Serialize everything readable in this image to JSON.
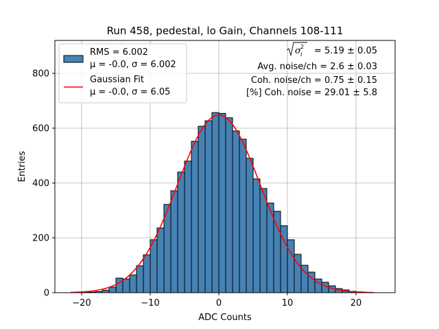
{
  "chart_data": {
    "type": "bar",
    "title": "Run 458, pedestal, lo Gain, Channels 108-111",
    "xlabel": "ADC Counts",
    "ylabel": "Entries",
    "xlim": [
      -23.9,
      25.7
    ],
    "ylim": [
      0,
      920
    ],
    "x_ticks": [
      -20,
      -10,
      0,
      10,
      20
    ],
    "y_ticks": [
      0,
      200,
      400,
      600,
      800
    ],
    "x_tick_labels": [
      "−20",
      "−10",
      "0",
      "10",
      "20"
    ],
    "y_tick_labels": [
      "0",
      "200",
      "400",
      "600",
      "800"
    ],
    "grid": true,
    "bin_width": 1.0,
    "bins": [
      -19.5,
      -18.5,
      -17.5,
      -16.5,
      -15.5,
      -14.5,
      -13.5,
      -12.5,
      -11.5,
      -10.5,
      -9.5,
      -8.5,
      -7.5,
      -6.5,
      -5.5,
      -4.5,
      -3.5,
      -2.5,
      -1.5,
      -0.5,
      0.5,
      1.5,
      2.5,
      3.5,
      4.5,
      5.5,
      6.5,
      7.5,
      8.5,
      9.5,
      10.5,
      11.5,
      12.5,
      13.5,
      14.5,
      15.5,
      16.5,
      17.5,
      18.5,
      19.5,
      20.5,
      21.5
    ],
    "counts": [
      1,
      2,
      4,
      9,
      20,
      53,
      50,
      65,
      98,
      138,
      193,
      236,
      322,
      372,
      440,
      480,
      552,
      607,
      627,
      657,
      654,
      638,
      590,
      560,
      490,
      415,
      380,
      327,
      297,
      244,
      193,
      140,
      100,
      75,
      50,
      38,
      25,
      15,
      10,
      5,
      3,
      1
    ],
    "fit": {
      "mu": 0.0,
      "sigma": 6.05,
      "amplitude": 648,
      "x_range": [
        -21.6,
        22.6
      ]
    },
    "series": [
      {
        "name": "RMS = 6.002",
        "sublabel": "μ = -0.0, σ = 6.002",
        "color": "#4682b4",
        "edge": "#000000",
        "kind": "hist"
      },
      {
        "name": "Gaussian Fit",
        "sublabel": "μ = -0.0, σ = 6.05",
        "color": "#ff0000",
        "kind": "line"
      }
    ],
    "legend_position": "top-left",
    "annotations": {
      "sqrt_value": "= 5.19 ± 0.05",
      "avg_noise": "Avg. noise/ch = 2.6 ± 0.03",
      "coh_noise": "Coh. noise/ch = 0.75 ± 0.15",
      "pct_coh_noise": "[%] Coh. noise = 29.01 ± 5.8"
    }
  }
}
